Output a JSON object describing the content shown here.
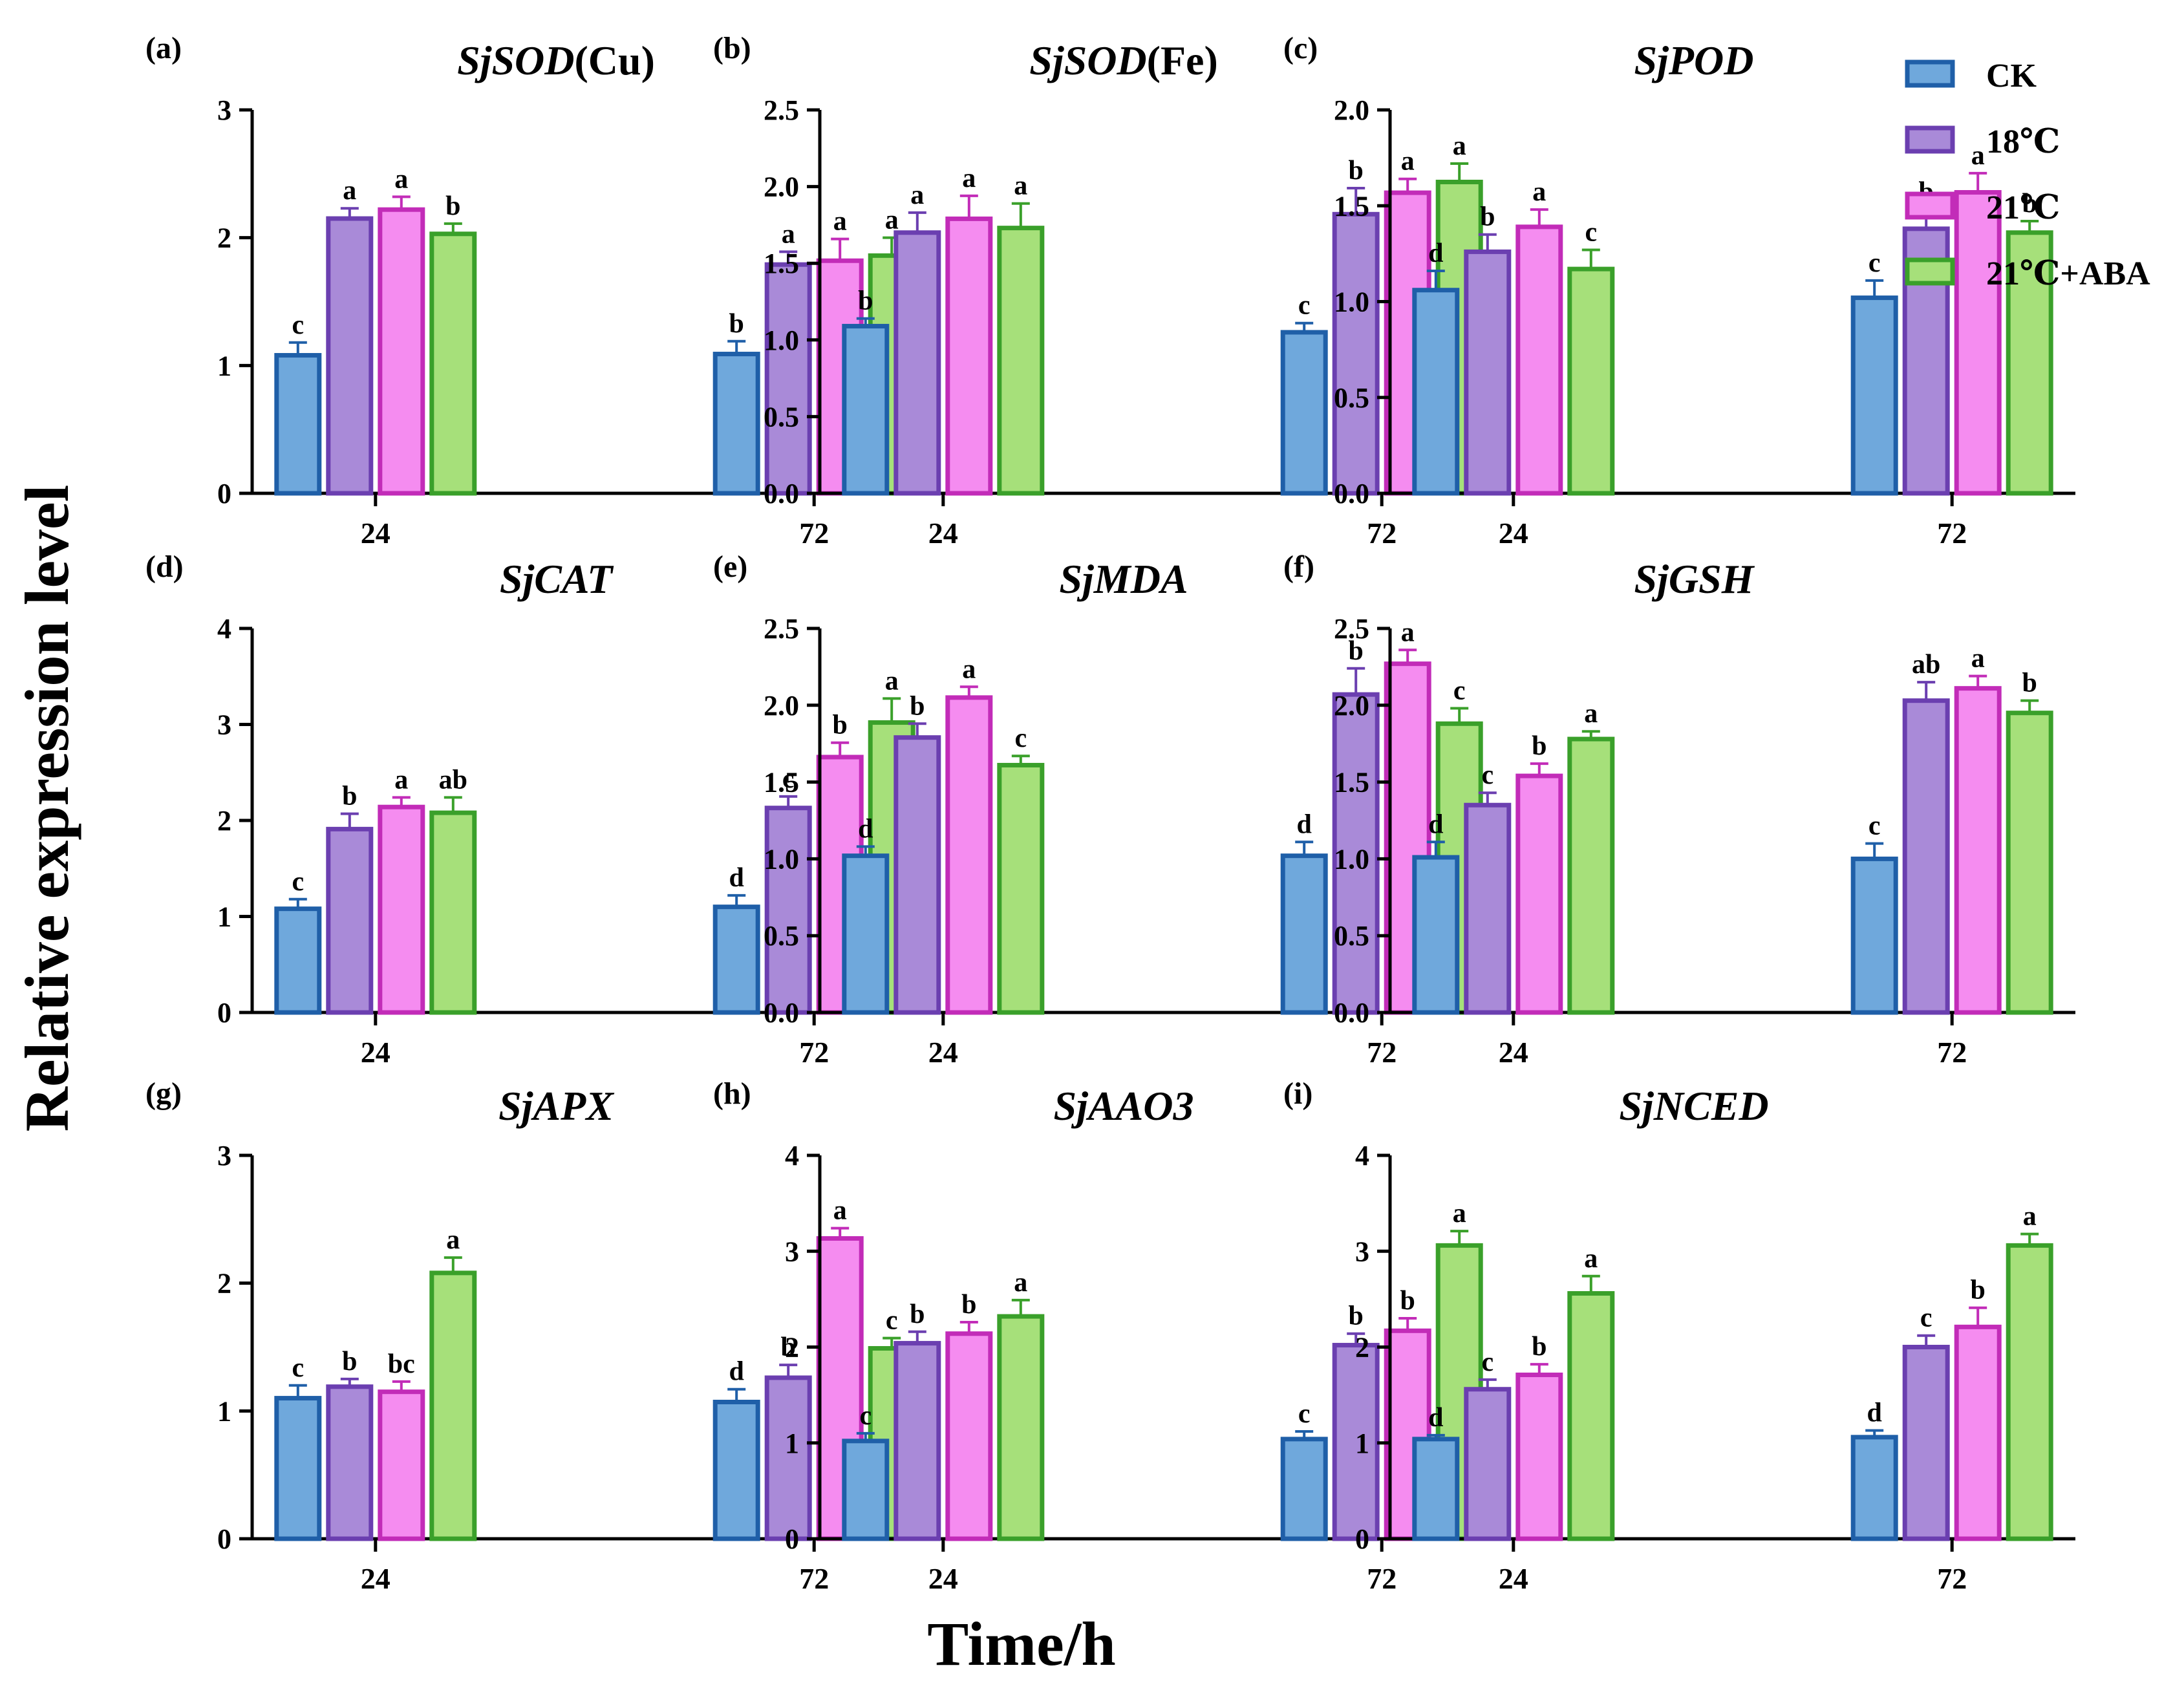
{
  "figure": {
    "ylabel": "Relative expression level",
    "xlabel": "Time/h"
  },
  "legend": [
    {
      "label": "CK",
      "fill": "#6fa8dc",
      "stroke": "#1f5fa8"
    },
    {
      "label": "18℃",
      "fill": "#a98ad8",
      "stroke": "#6b3fb0"
    },
    {
      "label": "21℃",
      "fill": "#f58cf0",
      "stroke": "#c22cb8"
    },
    {
      "label": "21℃+ABA",
      "fill": "#a6e07a",
      "stroke": "#3aa02a"
    }
  ],
  "chart_data": [
    {
      "type": "bar",
      "letter": "(a)",
      "title_italic": "SjSOD",
      "title_suffix": "(Cu)",
      "categories": [
        "24",
        "72"
      ],
      "ylim": [
        0,
        3
      ],
      "yticks": [
        "0",
        "1",
        "2",
        "3"
      ],
      "series": [
        {
          "name": "CK",
          "values": [
            1.08,
            1.09
          ],
          "errors": [
            0.1,
            0.1
          ],
          "sig": [
            "c",
            "b"
          ]
        },
        {
          "name": "18℃",
          "values": [
            2.15,
            1.79
          ],
          "errors": [
            0.08,
            0.1
          ],
          "sig": [
            "a",
            "a"
          ]
        },
        {
          "name": "21℃",
          "values": [
            2.22,
            1.82
          ],
          "errors": [
            0.1,
            0.17
          ],
          "sig": [
            "a",
            "a"
          ]
        },
        {
          "name": "21℃+ABA",
          "values": [
            2.03,
            1.86
          ],
          "errors": [
            0.08,
            0.14
          ],
          "sig": [
            "b",
            "a"
          ]
        }
      ]
    },
    {
      "type": "bar",
      "letter": "(b)",
      "title_italic": "SjSOD",
      "title_suffix": "(Fe)",
      "categories": [
        "24",
        "72"
      ],
      "ylim": [
        0,
        2.5
      ],
      "yticks": [
        "0.0",
        "0.5",
        "1.0",
        "1.5",
        "2.0",
        "2.5"
      ],
      "series": [
        {
          "name": "CK",
          "values": [
            1.09,
            1.05
          ],
          "errors": [
            0.05,
            0.06
          ],
          "sig": [
            "b",
            "c"
          ]
        },
        {
          "name": "18℃",
          "values": [
            1.7,
            1.82
          ],
          "errors": [
            0.13,
            0.17
          ],
          "sig": [
            "a",
            "b"
          ]
        },
        {
          "name": "21℃",
          "values": [
            1.79,
            1.96
          ],
          "errors": [
            0.15,
            0.09
          ],
          "sig": [
            "a",
            "a"
          ]
        },
        {
          "name": "21℃+ABA",
          "values": [
            1.73,
            2.03
          ],
          "errors": [
            0.16,
            0.12
          ],
          "sig": [
            "a",
            "a"
          ]
        }
      ]
    },
    {
      "type": "bar",
      "letter": "(c)",
      "title_italic": "SjPOD",
      "title_suffix": "",
      "categories": [
        "24",
        "72"
      ],
      "ylim": [
        0,
        2.0
      ],
      "yticks": [
        "0.0",
        "0.5",
        "1.0",
        "1.5",
        "2.0"
      ],
      "series": [
        {
          "name": "CK",
          "values": [
            1.06,
            1.02
          ],
          "errors": [
            0.1,
            0.09
          ],
          "sig": [
            "d",
            "c"
          ]
        },
        {
          "name": "18℃",
          "values": [
            1.26,
            1.38
          ],
          "errors": [
            0.09,
            0.1
          ],
          "sig": [
            "b",
            "b"
          ]
        },
        {
          "name": "21℃",
          "values": [
            1.39,
            1.57
          ],
          "errors": [
            0.09,
            0.1
          ],
          "sig": [
            "a",
            "a"
          ]
        },
        {
          "name": "21℃+ABA",
          "values": [
            1.17,
            1.36
          ],
          "errors": [
            0.1,
            0.06
          ],
          "sig": [
            "c",
            "b"
          ]
        }
      ]
    },
    {
      "type": "bar",
      "letter": "(d)",
      "title_italic": "SjCAT",
      "title_suffix": "",
      "categories": [
        "24",
        "72"
      ],
      "ylim": [
        0,
        4
      ],
      "yticks": [
        "0",
        "1",
        "2",
        "3",
        "4"
      ],
      "series": [
        {
          "name": "CK",
          "values": [
            1.08,
            1.1
          ],
          "errors": [
            0.1,
            0.12
          ],
          "sig": [
            "c",
            "d"
          ]
        },
        {
          "name": "18℃",
          "values": [
            1.91,
            2.13
          ],
          "errors": [
            0.16,
            0.12
          ],
          "sig": [
            "b",
            "c"
          ]
        },
        {
          "name": "21℃",
          "values": [
            2.14,
            2.66
          ],
          "errors": [
            0.1,
            0.15
          ],
          "sig": [
            "a",
            "b"
          ]
        },
        {
          "name": "21℃+ABA",
          "values": [
            2.08,
            3.02
          ],
          "errors": [
            0.16,
            0.25
          ],
          "sig": [
            "ab",
            "a"
          ]
        }
      ]
    },
    {
      "type": "bar",
      "letter": "(e)",
      "title_italic": "SjMDA",
      "title_suffix": "",
      "categories": [
        "24",
        "72"
      ],
      "ylim": [
        0,
        2.5
      ],
      "yticks": [
        "0.0",
        "0.5",
        "1.0",
        "1.5",
        "2.0",
        "2.5"
      ],
      "series": [
        {
          "name": "CK",
          "values": [
            1.02,
            1.02
          ],
          "errors": [
            0.06,
            0.09
          ],
          "sig": [
            "d",
            "d"
          ]
        },
        {
          "name": "18℃",
          "values": [
            1.79,
            2.07
          ],
          "errors": [
            0.09,
            0.17
          ],
          "sig": [
            "b",
            "b"
          ]
        },
        {
          "name": "21℃",
          "values": [
            2.05,
            2.27
          ],
          "errors": [
            0.07,
            0.09
          ],
          "sig": [
            "a",
            "a"
          ]
        },
        {
          "name": "21℃+ABA",
          "values": [
            1.61,
            1.88
          ],
          "errors": [
            0.06,
            0.1
          ],
          "sig": [
            "c",
            "c"
          ]
        }
      ]
    },
    {
      "type": "bar",
      "letter": "(f)",
      "title_italic": "SjGSH",
      "title_suffix": "",
      "categories": [
        "24",
        "72"
      ],
      "ylim": [
        0,
        2.5
      ],
      "yticks": [
        "0.0",
        "0.5",
        "1.0",
        "1.5",
        "2.0",
        "2.5"
      ],
      "series": [
        {
          "name": "CK",
          "values": [
            1.01,
            1.0
          ],
          "errors": [
            0.1,
            0.1
          ],
          "sig": [
            "d",
            "c"
          ]
        },
        {
          "name": "18℃",
          "values": [
            1.35,
            2.03
          ],
          "errors": [
            0.08,
            0.12
          ],
          "sig": [
            "c",
            "ab"
          ]
        },
        {
          "name": "21℃",
          "values": [
            1.54,
            2.11
          ],
          "errors": [
            0.08,
            0.08
          ],
          "sig": [
            "b",
            "a"
          ]
        },
        {
          "name": "21℃+ABA",
          "values": [
            1.78,
            1.95
          ],
          "errors": [
            0.05,
            0.08
          ],
          "sig": [
            "a",
            "b"
          ]
        }
      ]
    },
    {
      "type": "bar",
      "letter": "(g)",
      "title_italic": "SjAPX",
      "title_suffix": "",
      "categories": [
        "24",
        "72"
      ],
      "ylim": [
        0,
        3
      ],
      "yticks": [
        "0",
        "1",
        "2",
        "3"
      ],
      "series": [
        {
          "name": "CK",
          "values": [
            1.1,
            1.07
          ],
          "errors": [
            0.1,
            0.1
          ],
          "sig": [
            "c",
            "d"
          ]
        },
        {
          "name": "18℃",
          "values": [
            1.19,
            1.26
          ],
          "errors": [
            0.06,
            0.1
          ],
          "sig": [
            "b",
            "b"
          ]
        },
        {
          "name": "21℃",
          "values": [
            1.15,
            2.35
          ],
          "errors": [
            0.08,
            0.08
          ],
          "sig": [
            "bc",
            "a"
          ]
        },
        {
          "name": "21℃+ABA",
          "values": [
            2.08,
            1.49
          ],
          "errors": [
            0.12,
            0.08
          ],
          "sig": [
            "a",
            "c"
          ]
        }
      ]
    },
    {
      "type": "bar",
      "letter": "(h)",
      "title_italic": "SjAAO3",
      "title_suffix": "",
      "categories": [
        "24",
        "72"
      ],
      "ylim": [
        0,
        4
      ],
      "yticks": [
        "0",
        "1",
        "2",
        "3",
        "4"
      ],
      "series": [
        {
          "name": "CK",
          "values": [
            1.02,
            1.04
          ],
          "errors": [
            0.08,
            0.08
          ],
          "sig": [
            "c",
            "c"
          ]
        },
        {
          "name": "18℃",
          "values": [
            2.04,
            2.02
          ],
          "errors": [
            0.12,
            0.12
          ],
          "sig": [
            "b",
            "b"
          ]
        },
        {
          "name": "21℃",
          "values": [
            2.14,
            2.17
          ],
          "errors": [
            0.12,
            0.13
          ],
          "sig": [
            "b",
            "b"
          ]
        },
        {
          "name": "21℃+ABA",
          "values": [
            2.32,
            3.06
          ],
          "errors": [
            0.17,
            0.15
          ],
          "sig": [
            "a",
            "a"
          ]
        }
      ]
    },
    {
      "type": "bar",
      "letter": "(i)",
      "title_italic": "SjNCED",
      "title_suffix": "",
      "categories": [
        "24",
        "72"
      ],
      "ylim": [
        0,
        4
      ],
      "yticks": [
        "0",
        "1",
        "2",
        "3",
        "4"
      ],
      "series": [
        {
          "name": "CK",
          "values": [
            1.04,
            1.06
          ],
          "errors": [
            0.04,
            0.07
          ],
          "sig": [
            "d",
            "d"
          ]
        },
        {
          "name": "18℃",
          "values": [
            1.56,
            2.0
          ],
          "errors": [
            0.1,
            0.12
          ],
          "sig": [
            "c",
            "c"
          ]
        },
        {
          "name": "21℃",
          "values": [
            1.71,
            2.21
          ],
          "errors": [
            0.11,
            0.2
          ],
          "sig": [
            "b",
            "b"
          ]
        },
        {
          "name": "21℃+ABA",
          "values": [
            2.56,
            3.06
          ],
          "errors": [
            0.18,
            0.12
          ],
          "sig": [
            "a",
            "a"
          ]
        }
      ]
    }
  ]
}
